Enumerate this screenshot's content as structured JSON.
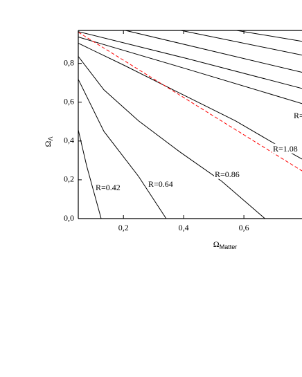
{
  "chart_data": {
    "type": "line",
    "xlabel": {
      "symbol": "Ω",
      "subscript": "Matter"
    },
    "ylabel": {
      "symbol": "Ω",
      "subscript": "Λ"
    },
    "xlim": [
      0.05,
      0.793
    ],
    "ylim": [
      0,
      0.97
    ],
    "xticks": [
      {
        "value": 0.2,
        "label": "0,2"
      },
      {
        "value": 0.4,
        "label": "0,4"
      },
      {
        "value": 0.6,
        "label": "0,6"
      }
    ],
    "yticks": [
      {
        "value": 0,
        "label": "0,0"
      },
      {
        "value": 0.2,
        "label": "0,2"
      },
      {
        "value": 0.4,
        "label": "0,4"
      },
      {
        "value": 0.6,
        "label": "0,6"
      },
      {
        "value": 0.8,
        "label": "0,8"
      }
    ],
    "series": [
      {
        "name": "R=0.42",
        "color": "#000000",
        "x": [
          0.05,
          0.078,
          0.126
        ],
        "values": [
          0.457,
          0.271,
          0
        ]
      },
      {
        "name": "R=0.64",
        "color": "#000000",
        "x": [
          0.05,
          0.135,
          0.25,
          0.342
        ],
        "values": [
          0.718,
          0.45,
          0.218,
          0
        ]
      },
      {
        "name": "R=0.86",
        "color": "#000000",
        "x": [
          0.05,
          0.135,
          0.25,
          0.388,
          0.526,
          0.67
        ],
        "values": [
          0.836,
          0.664,
          0.504,
          0.343,
          0.193,
          0
        ]
      },
      {
        "name": "R=1.08",
        "color": "#000000",
        "x": [
          0.05,
          0.204,
          0.388,
          0.572,
          0.71,
          0.793
        ],
        "values": [
          0.904,
          0.789,
          0.646,
          0.504,
          0.379,
          0.307
        ]
      },
      {
        "name": "R=",
        "color": "#000000",
        "x": [
          0.05,
          0.411,
          0.793
        ],
        "values": [
          0.936,
          0.771,
          0.593
        ]
      },
      {
        "color": "#000000",
        "x": [
          0.05,
          0.411,
          0.793
        ],
        "values": [
          0.964,
          0.825,
          0.671
        ]
      },
      {
        "color": "#000000",
        "x": [
          0.204,
          0.793
        ],
        "values": [
          0.971,
          0.754
        ]
      },
      {
        "color": "#000000",
        "x": [
          0.388,
          0.793
        ],
        "values": [
          0.971,
          0.843
        ]
      },
      {
        "color": "#000000",
        "x": [
          0.572,
          0.793
        ],
        "values": [
          0.971,
          0.914
        ]
      },
      {
        "color": "#ff0000",
        "dashed": true,
        "x": [
          0.05,
          0.793
        ],
        "values": [
          0.961,
          0.246
        ]
      }
    ]
  }
}
